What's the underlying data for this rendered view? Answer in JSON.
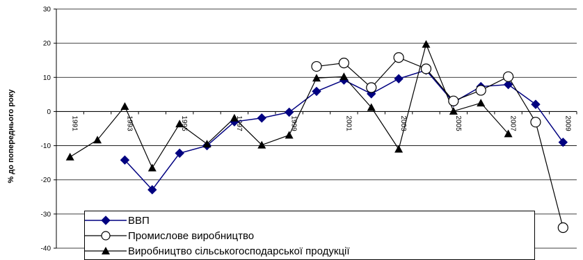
{
  "chart_data": {
    "type": "line",
    "title": "",
    "xlabel": "",
    "ylabel": "% до попереднього року",
    "ylim": [
      -40,
      30
    ],
    "yticks": [
      30,
      20,
      10,
      0,
      -10,
      -20,
      -30,
      -40
    ],
    "x": [
      1991,
      1992,
      1993,
      1994,
      1995,
      1996,
      1997,
      1998,
      1999,
      2000,
      2001,
      2002,
      2003,
      2004,
      2005,
      2006,
      2007,
      2008,
      2009
    ],
    "xtick_labels": [
      "1991",
      "1993",
      "1995",
      "1997",
      "1999",
      "2001",
      "2003",
      "2005",
      "2007",
      "2009"
    ],
    "grid": "horizontal",
    "legend_position": "bottom",
    "series": [
      {
        "name": "ВВП",
        "marker": "diamond",
        "color": "#000080",
        "values": [
          null,
          null,
          -14.2,
          -22.9,
          -12.2,
          -10.0,
          -3.0,
          -1.9,
          -0.2,
          5.9,
          9.2,
          5.2,
          9.6,
          12.1,
          2.7,
          7.3,
          7.9,
          2.1,
          -9.0
        ]
      },
      {
        "name": "Промислове виробництво",
        "marker": "circle-open",
        "color": "#000000",
        "values": [
          null,
          null,
          null,
          null,
          null,
          null,
          null,
          null,
          null,
          13.2,
          14.2,
          7.0,
          15.8,
          12.5,
          3.1,
          6.2,
          10.2,
          -3.1,
          -34.0
        ]
      },
      {
        "name": "Виробництво сільськогосподарської продукції",
        "marker": "triangle",
        "color": "#000000",
        "values": [
          -13.3,
          -8.3,
          1.5,
          -16.5,
          -3.6,
          -9.5,
          -1.9,
          -9.8,
          -6.9,
          9.8,
          10.2,
          1.2,
          -11.0,
          19.7,
          0.1,
          2.5,
          -6.5,
          null,
          null
        ]
      }
    ]
  }
}
